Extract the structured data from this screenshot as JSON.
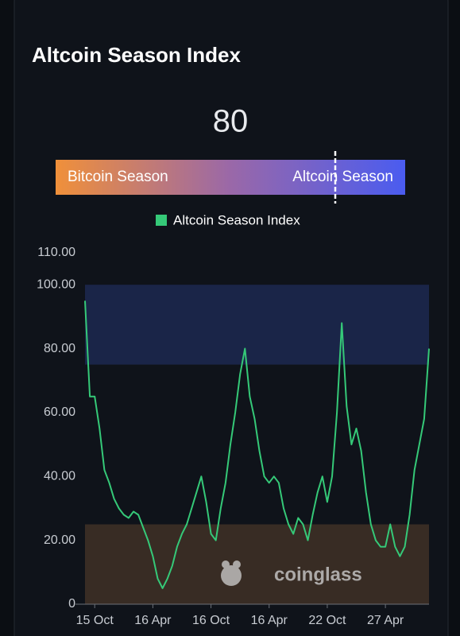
{
  "title": "Altcoin Season Index",
  "gauge": {
    "value": 80,
    "range": [
      0,
      100
    ],
    "left_label": "Bitcoin Season",
    "right_label": "Altcoin Season",
    "colors": [
      "#f0903a",
      "#9a68a8",
      "#4a5cf0"
    ]
  },
  "watermark": "coinglass",
  "chart_data": {
    "type": "line",
    "categories": [
      null,
      null,
      "15 Oct",
      null,
      null,
      null,
      null,
      null,
      null,
      null,
      null,
      null,
      null,
      null,
      "16 Apr",
      null,
      null,
      null,
      null,
      null,
      null,
      null,
      null,
      null,
      null,
      null,
      "16 Oct",
      null,
      null,
      null,
      null,
      null,
      null,
      null,
      null,
      null,
      null,
      null,
      "16 Apr",
      null,
      null,
      null,
      null,
      null,
      null,
      null,
      null,
      null,
      null,
      null,
      "22 Oct",
      null,
      null,
      null,
      null,
      null,
      null,
      null,
      null,
      null,
      null,
      null,
      "27 Apr",
      null,
      null,
      null,
      null,
      null,
      null,
      null,
      null,
      null
    ],
    "series": [
      {
        "name": "Altcoin Season Index",
        "color": "#35c978",
        "values": [
          95,
          65,
          65,
          55,
          42,
          38,
          33,
          30,
          28,
          27,
          29,
          28,
          24,
          20,
          15,
          8,
          5,
          8,
          12,
          18,
          22,
          25,
          30,
          35,
          40,
          32,
          22,
          20,
          30,
          38,
          50,
          60,
          72,
          80,
          65,
          58,
          48,
          40,
          38,
          40,
          38,
          30,
          25,
          22,
          27,
          25,
          20,
          28,
          35,
          40,
          32,
          40,
          60,
          88,
          62,
          50,
          55,
          48,
          35,
          25,
          20,
          18,
          18,
          25,
          18,
          15,
          18,
          28,
          42,
          50,
          58,
          80
        ]
      }
    ],
    "ylim": [
      0,
      110
    ],
    "yticks": [
      0,
      {
        "value": 20,
        "label": "20.00"
      },
      {
        "value": 40,
        "label": "40.00"
      },
      {
        "value": 60,
        "label": "60.00"
      },
      {
        "value": 80,
        "label": "80.00"
      },
      {
        "value": 100,
        "label": "100.00"
      },
      {
        "value": 110,
        "label": "110.00"
      }
    ],
    "bands": [
      {
        "from": 75,
        "to": 100,
        "color": "#1a2548"
      },
      {
        "from": 0,
        "to": 25,
        "color": "#382c24"
      }
    ],
    "legend": "top"
  }
}
